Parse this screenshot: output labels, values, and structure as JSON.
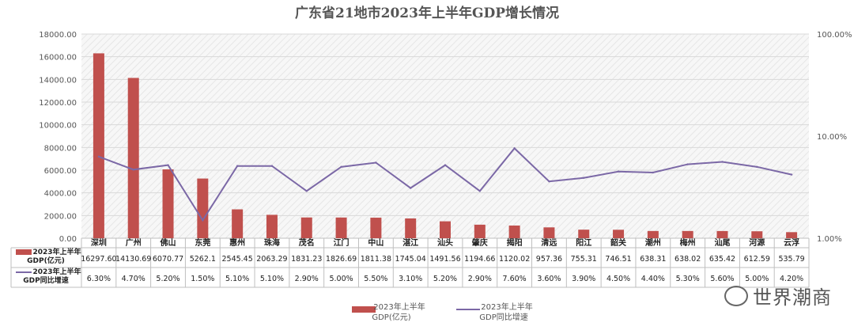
{
  "chart_data": {
    "type": "bar",
    "title": "广东省21地市2023年上半年GDP增长情况",
    "categories": [
      "深圳",
      "广州",
      "佛山",
      "东莞",
      "惠州",
      "珠海",
      "茂名",
      "江门",
      "中山",
      "湛江",
      "汕头",
      "肇庆",
      "揭阳",
      "清远",
      "阳江",
      "韶关",
      "潮州",
      "梅州",
      "汕尾",
      "河源",
      "云浮"
    ],
    "series": [
      {
        "name": "2023年上半年GDP(亿元)",
        "type": "bar",
        "axis": "left",
        "color": "#c0504d",
        "values": [
          16297.6,
          14130.69,
          6070.77,
          5262.1,
          2545.45,
          2063.29,
          1831.23,
          1826.69,
          1811.38,
          1745.04,
          1491.56,
          1194.66,
          1120.02,
          957.36,
          755.31,
          746.51,
          638.31,
          638.02,
          635.42,
          612.59,
          535.79
        ],
        "labels": [
          "16297.60",
          "14130.69",
          "6070.77",
          "5262.1",
          "2545.45",
          "2063.29",
          "1831.23",
          "1826.69",
          "1811.38",
          "1745.04",
          "1491.56",
          "1194.66",
          "1120.02",
          "957.36",
          "755.31",
          "746.51",
          "638.31",
          "638.02",
          "635.42",
          "612.59",
          "535.79"
        ]
      },
      {
        "name": "2023年上半年GDP同比增速",
        "type": "line",
        "axis": "right",
        "scale": "log",
        "color": "#7b68a6",
        "values": [
          6.3,
          4.7,
          5.2,
          1.5,
          5.1,
          5.1,
          2.9,
          5.0,
          5.5,
          3.1,
          5.2,
          2.9,
          7.6,
          3.6,
          3.9,
          4.5,
          4.4,
          5.3,
          5.6,
          5.0,
          4.2
        ],
        "labels": [
          "6.30%",
          "4.70%",
          "5.20%",
          "1.50%",
          "5.10%",
          "5.10%",
          "2.90%",
          "5.00%",
          "5.50%",
          "3.10%",
          "5.20%",
          "2.90%",
          "7.60%",
          "3.60%",
          "3.90%",
          "4.50%",
          "4.40%",
          "5.30%",
          "5.60%",
          "5.00%",
          "4.20%"
        ]
      }
    ],
    "y_left": {
      "ylim": [
        0,
        18000
      ],
      "ticks": [
        "0.00",
        "2000.00",
        "4000.00",
        "6000.00",
        "8000.00",
        "10000.00",
        "12000.00",
        "14000.00",
        "16000.00",
        "18000.00"
      ]
    },
    "y_right": {
      "scale": "log",
      "ylim": [
        1,
        100
      ],
      "ticks": [
        "1.00%",
        "10.00%",
        "100.00%"
      ]
    },
    "table_row_labels": {
      "bar": "2023年上半年GDP(亿元)",
      "line": "2023年上半年GDP同比增速"
    },
    "legend": {
      "placement": "bottom",
      "bar_label": "2023年上半年GDP(亿元)",
      "line_label": "2023年上半年GDP同比增速"
    }
  },
  "watermark": {
    "text": "世界潮商",
    "icon": "wechat-icon"
  }
}
